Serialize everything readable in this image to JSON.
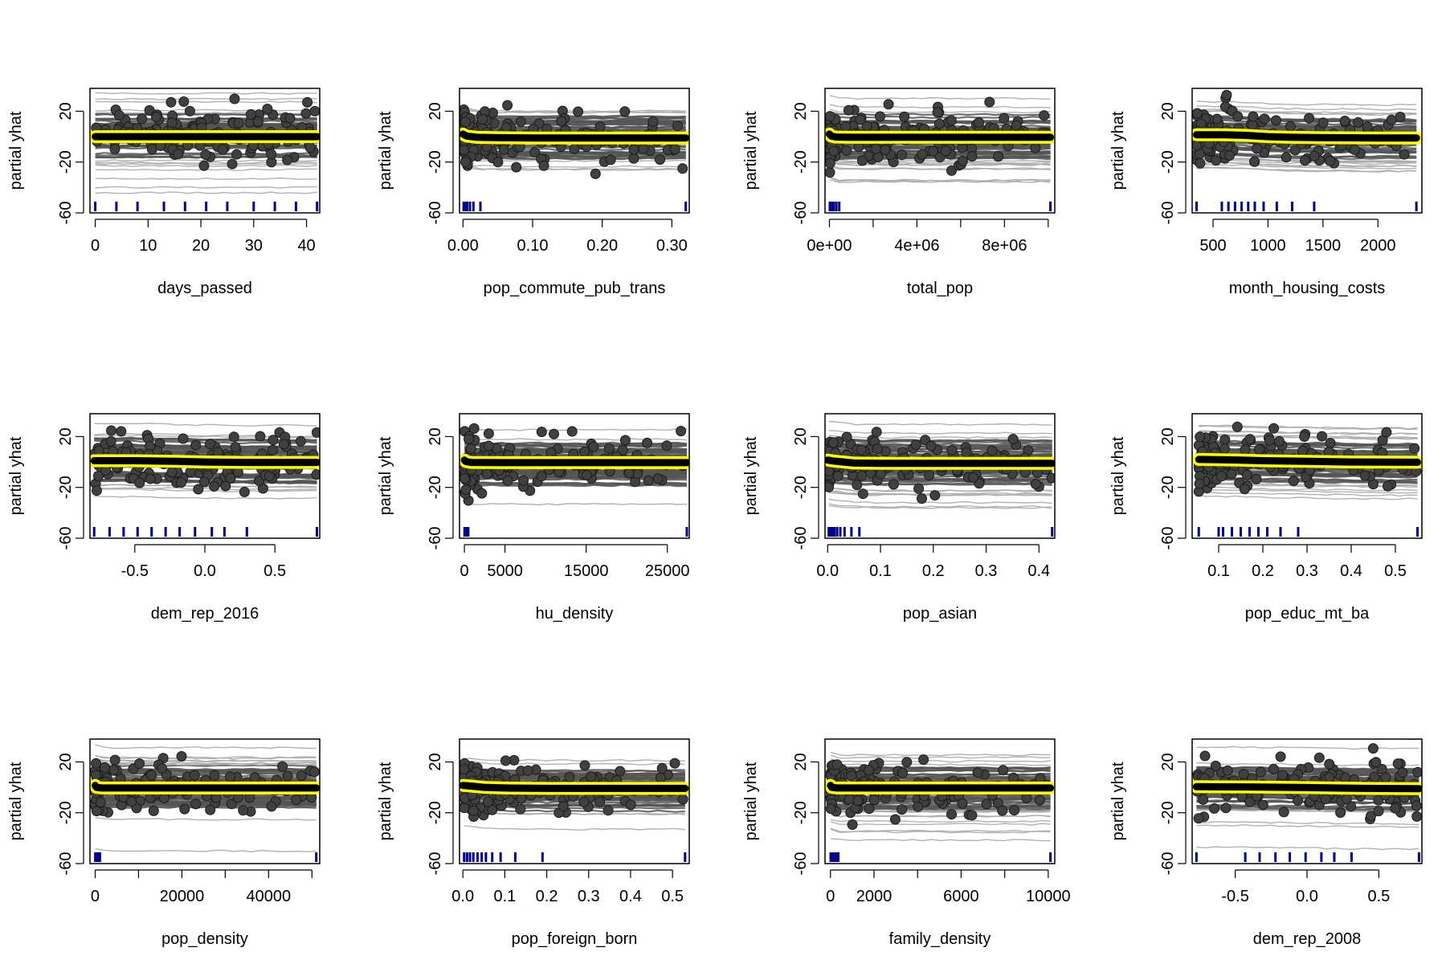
{
  "colors": {
    "ice_lines": "#555555",
    "ice_lines_light": "#aaaaaa",
    "points": "#404040",
    "pdp_outline": "#ffff00",
    "pdp_core": "#000000",
    "rug": "#00008b"
  },
  "chart_data": [
    {
      "type": "line",
      "plot": "ICE",
      "xlabel": "days_passed",
      "ylabel": "partial yhat",
      "xlim": [
        -1,
        42.5
      ],
      "ylim": [
        -60,
        38
      ],
      "xticks": [
        0,
        10,
        20,
        30,
        40
      ],
      "xtick_labels": [
        "0",
        "10",
        "20",
        "30",
        "40"
      ],
      "yticks": [
        -60,
        -20,
        20
      ],
      "ytick_labels": [
        "-60",
        "-20",
        "20"
      ],
      "pdp": {
        "x": [
          0,
          10,
          20,
          30,
          40,
          42
        ],
        "y": [
          0,
          0,
          0,
          0,
          0,
          0
        ]
      },
      "rug": [
        0,
        4,
        8,
        13,
        17,
        21,
        25,
        30,
        34,
        38,
        42
      ]
    },
    {
      "type": "line",
      "plot": "ICE",
      "xlabel": "pop_commute_pub_trans",
      "ylabel": "partial yhat",
      "xlim": [
        -0.005,
        0.325
      ],
      "ylim": [
        -60,
        38
      ],
      "xticks": [
        0.0,
        0.1,
        0.2,
        0.3
      ],
      "xtick_labels": [
        "0.00",
        "0.10",
        "0.20",
        "0.30"
      ],
      "yticks": [
        -60,
        -20,
        20
      ],
      "ytick_labels": [
        "-60",
        "-20",
        "20"
      ],
      "pdp": {
        "x": [
          0.0,
          0.005,
          0.02,
          0.05,
          0.1,
          0.2,
          0.32
        ],
        "y": [
          2,
          0.5,
          -0.5,
          -0.8,
          -1,
          -1,
          -1
        ]
      },
      "rug": [
        0.001,
        0.003,
        0.006,
        0.01,
        0.015,
        0.025,
        0.32
      ]
    },
    {
      "type": "line",
      "plot": "ICE",
      "xlabel": "total_pop",
      "ylabel": "partial yhat",
      "xlim": [
        -200000,
        10300000
      ],
      "ylim": [
        -60,
        38
      ],
      "xticks": [
        0,
        2000000,
        4000000,
        6000000,
        8000000,
        10000000
      ],
      "xtick_labels": [
        "0e+00",
        "",
        "4e+06",
        "",
        "8e+06",
        ""
      ],
      "yticks": [
        -60,
        -20,
        20
      ],
      "ytick_labels": [
        "-60",
        "-20",
        "20"
      ],
      "pdp": {
        "x": [
          0,
          100000,
          300000,
          1000000,
          5000000,
          10100000
        ],
        "y": [
          2,
          0.3,
          -0.3,
          -0.5,
          -0.5,
          -0.5
        ]
      },
      "rug": [
        20000,
        60000,
        120000,
        200000,
        320000,
        450000,
        10100000
      ]
    },
    {
      "type": "line",
      "plot": "ICE",
      "xlabel": "month_housing_costs",
      "ylabel": "partial yhat",
      "xlim": [
        310,
        2400
      ],
      "ylim": [
        -60,
        38
      ],
      "xticks": [
        500,
        1000,
        1500,
        2000
      ],
      "xtick_labels": [
        "500",
        "1000",
        "1500",
        "2000"
      ],
      "yticks": [
        -60,
        -20,
        20
      ],
      "ytick_labels": [
        "-60",
        "-20",
        "20"
      ],
      "pdp": {
        "x": [
          350,
          600,
          800,
          1000,
          1200,
          1500,
          2000,
          2350
        ],
        "y": [
          1.5,
          1.5,
          1,
          0,
          -0.5,
          -0.8,
          -1,
          -1
        ]
      },
      "rug": [
        350,
        580,
        640,
        700,
        760,
        820,
        880,
        960,
        1080,
        1220,
        1420,
        2350
      ]
    },
    {
      "type": "line",
      "plot": "ICE",
      "xlabel": "dem_rep_2016",
      "ylabel": "partial yhat",
      "xlim": [
        -0.82,
        0.82
      ],
      "ylim": [
        -60,
        38
      ],
      "xticks": [
        -0.5,
        0.0,
        0.5
      ],
      "xtick_labels": [
        "-0.5",
        "0.0",
        "0.5"
      ],
      "yticks": [
        -60,
        -20,
        20
      ],
      "ytick_labels": [
        "-60",
        "-20",
        "20"
      ],
      "pdp": {
        "x": [
          -0.79,
          -0.5,
          -0.2,
          0.0,
          0.3,
          0.8
        ],
        "y": [
          1,
          1,
          0.5,
          0,
          -0.3,
          -0.3
        ]
      },
      "rug": [
        -0.79,
        -0.68,
        -0.58,
        -0.48,
        -0.38,
        -0.28,
        -0.18,
        -0.07,
        0.05,
        0.14,
        0.3,
        0.8
      ]
    },
    {
      "type": "line",
      "plot": "ICE",
      "xlabel": "hu_density",
      "ylabel": "partial yhat",
      "xlim": [
        -600,
        27700
      ],
      "ylim": [
        -60,
        38
      ],
      "xticks": [
        0,
        5000,
        15000,
        25000
      ],
      "xtick_labels": [
        "0",
        "5000",
        "15000",
        "25000"
      ],
      "yticks": [
        -60,
        -20,
        20
      ],
      "ytick_labels": [
        "-60",
        "-20",
        "20"
      ],
      "pdp": {
        "x": [
          0,
          200,
          800,
          5000,
          27400
        ],
        "y": [
          1.5,
          0.3,
          -0.3,
          -0.5,
          -0.5
        ]
      },
      "rug": [
        20,
        60,
        120,
        200,
        320,
        480,
        27400
      ]
    },
    {
      "type": "line",
      "plot": "ICE",
      "xlabel": "pop_asian",
      "ylabel": "partial yhat",
      "xlim": [
        -0.005,
        0.43
      ],
      "ylim": [
        -60,
        38
      ],
      "xticks": [
        0.0,
        0.1,
        0.2,
        0.3,
        0.4
      ],
      "xtick_labels": [
        "0.0",
        "0.1",
        "0.2",
        "0.3",
        "0.4"
      ],
      "yticks": [
        -60,
        -20,
        20
      ],
      "ytick_labels": [
        "-60",
        "-20",
        "20"
      ],
      "pdp": {
        "x": [
          0.0,
          0.01,
          0.03,
          0.05,
          0.1,
          0.3,
          0.425
        ],
        "y": [
          1.5,
          0.8,
          0,
          -0.8,
          -1,
          -1,
          -1
        ]
      },
      "rug": [
        0.002,
        0.005,
        0.009,
        0.013,
        0.018,
        0.024,
        0.032,
        0.045,
        0.06,
        0.425
      ]
    },
    {
      "type": "line",
      "plot": "ICE",
      "xlabel": "pop_educ_mt_ba",
      "ylabel": "partial yhat",
      "xlim": [
        0.04,
        0.56
      ],
      "ylim": [
        -60,
        38
      ],
      "xticks": [
        0.1,
        0.2,
        0.3,
        0.4,
        0.5
      ],
      "xtick_labels": [
        "0.1",
        "0.2",
        "0.3",
        "0.4",
        "0.5"
      ],
      "yticks": [
        -60,
        -20,
        20
      ],
      "ytick_labels": [
        "-60",
        "-20",
        "20"
      ],
      "pdp": {
        "x": [
          0.055,
          0.1,
          0.15,
          0.2,
          0.3,
          0.4,
          0.55
        ],
        "y": [
          2,
          1.8,
          1.5,
          1,
          0.5,
          0,
          -0.2
        ]
      },
      "rug": [
        0.055,
        0.1,
        0.11,
        0.13,
        0.15,
        0.17,
        0.19,
        0.21,
        0.24,
        0.28,
        0.55
      ]
    },
    {
      "type": "line",
      "plot": "ICE",
      "xlabel": "pop_density",
      "ylabel": "partial yhat",
      "xlim": [
        -1200,
        51800
      ],
      "ylim": [
        -60,
        38
      ],
      "xticks": [
        0,
        10000,
        20000,
        30000,
        40000,
        50000
      ],
      "xtick_labels": [
        "0",
        "",
        "20000",
        "",
        "40000",
        ""
      ],
      "yticks": [
        -60,
        -20,
        20
      ],
      "ytick_labels": [
        "-60",
        "-20",
        "20"
      ],
      "pdp": {
        "x": [
          0,
          300,
          1500,
          10000,
          51000
        ],
        "y": [
          1.5,
          0,
          -0.5,
          -0.5,
          -0.5
        ]
      },
      "rug": [
        30,
        100,
        250,
        450,
        700,
        1100,
        51000
      ]
    },
    {
      "type": "line",
      "plot": "ICE",
      "xlabel": "pop_foreign_born",
      "ylabel": "partial yhat",
      "xlim": [
        -0.008,
        0.54
      ],
      "ylim": [
        -60,
        38
      ],
      "xticks": [
        0.0,
        0.1,
        0.2,
        0.3,
        0.4,
        0.5
      ],
      "xtick_labels": [
        "0.0",
        "0.1",
        "0.2",
        "0.3",
        "0.4",
        "0.5"
      ],
      "yticks": [
        -60,
        -20,
        20
      ],
      "ytick_labels": [
        "-60",
        "-20",
        "20"
      ],
      "pdp": {
        "x": [
          0.0,
          0.02,
          0.05,
          0.1,
          0.2,
          0.53
        ],
        "y": [
          1.5,
          1,
          0,
          -0.5,
          -0.8,
          -0.8
        ]
      },
      "rug": [
        0.003,
        0.01,
        0.017,
        0.025,
        0.035,
        0.045,
        0.055,
        0.07,
        0.09,
        0.125,
        0.19,
        0.53
      ]
    },
    {
      "type": "line",
      "plot": "ICE",
      "xlabel": "family_density",
      "ylabel": "partial yhat",
      "xlim": [
        -250,
        10300
      ],
      "ylim": [
        -60,
        38
      ],
      "xticks": [
        0,
        2000,
        4000,
        6000,
        8000,
        10000
      ],
      "xtick_labels": [
        "0",
        "2000",
        "",
        "6000",
        "",
        "10000"
      ],
      "yticks": [
        -60,
        -20,
        20
      ],
      "ytick_labels": [
        "-60",
        "-20",
        "20"
      ],
      "pdp": {
        "x": [
          0,
          60,
          300,
          1000,
          10100
        ],
        "y": [
          1.5,
          0,
          -0.5,
          -0.5,
          -0.5
        ]
      },
      "rug": [
        10,
        40,
        80,
        140,
        200,
        280,
        360,
        10100
      ]
    },
    {
      "type": "line",
      "plot": "ICE",
      "xlabel": "dem_rep_2008",
      "ylabel": "partial yhat",
      "xlim": [
        -0.8,
        0.8
      ],
      "ylim": [
        -60,
        38
      ],
      "xticks": [
        -0.5,
        0.0,
        0.5
      ],
      "xtick_labels": [
        "-0.5",
        "0.0",
        "0.5"
      ],
      "yticks": [
        -60,
        -20,
        20
      ],
      "ytick_labels": [
        "-60",
        "-20",
        "20"
      ],
      "pdp": {
        "x": [
          -0.77,
          -0.4,
          0.0,
          0.4,
          0.78
        ],
        "y": [
          0.5,
          0.3,
          -0.2,
          -0.8,
          -1
        ]
      },
      "rug": [
        -0.77,
        -0.43,
        -0.33,
        -0.22,
        -0.12,
        -0.01,
        0.1,
        0.19,
        0.31,
        0.78
      ]
    }
  ]
}
